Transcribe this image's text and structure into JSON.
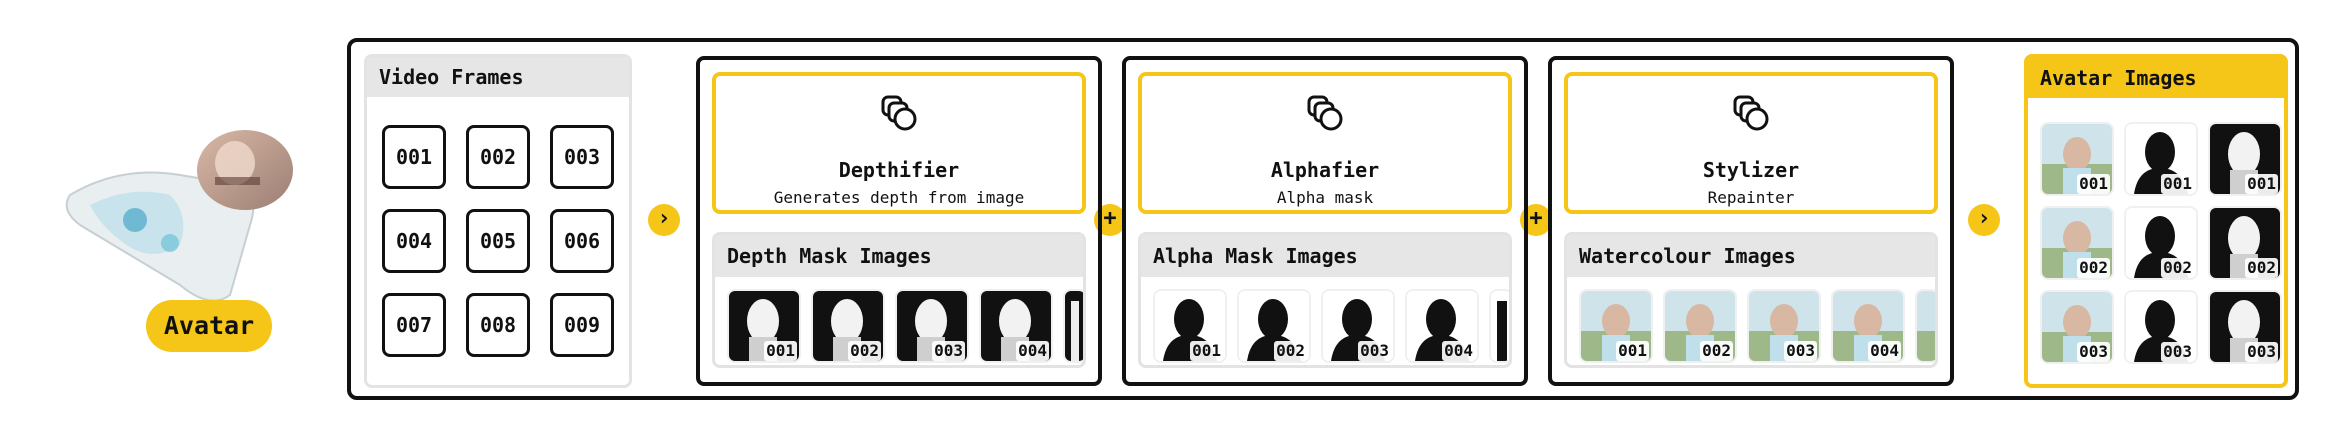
{
  "avatar": {
    "label": "Avatar",
    "icon": "avatar-portrait"
  },
  "video_frames": {
    "title": "Video Frames",
    "frames": [
      "001",
      "002",
      "003",
      "004",
      "005",
      "006",
      "007",
      "008",
      "009"
    ]
  },
  "connectors": {
    "arrow": "›",
    "plus": "+"
  },
  "stages": [
    {
      "icon": "stack-icon",
      "title": "Depthifier",
      "subtitle": "Generates depth from image",
      "images_title": "Depth Mask Images",
      "images": [
        "001",
        "002",
        "003",
        "004"
      ],
      "kind": "depth"
    },
    {
      "icon": "stack-icon",
      "title": "Alphafier",
      "subtitle": "Alpha mask",
      "images_title": "Alpha Mask Images",
      "images": [
        "001",
        "002",
        "003",
        "004"
      ],
      "kind": "alpha"
    },
    {
      "icon": "stack-icon",
      "title": "Stylizer",
      "subtitle": "Repainter",
      "images_title": "Watercolour Images",
      "images": [
        "001",
        "002",
        "003",
        "004"
      ],
      "kind": "water"
    }
  ],
  "avatar_images": {
    "title": "Avatar Images",
    "rows": [
      [
        "001",
        "001",
        "001"
      ],
      [
        "002",
        "002",
        "002"
      ],
      [
        "003",
        "003",
        "003"
      ]
    ]
  },
  "colors": {
    "accent": "#f5c518",
    "border": "#111111",
    "panel": "#e6e6e6"
  }
}
